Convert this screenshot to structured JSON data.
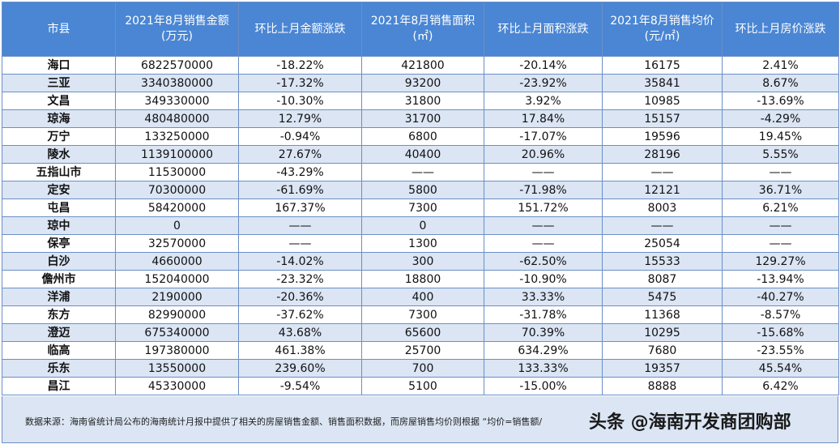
{
  "table": {
    "headers": [
      "市县",
      "2021年8月销售金额\n(万元)",
      "环比上月金额涨跌",
      "2021年8月销售面积\n(㎡)",
      "环比上月面积涨跌",
      "2021年8月销售均价\n(元/㎡)",
      "环比上月房价涨跌"
    ],
    "rows": [
      [
        "海口",
        "6822570000",
        "-18.22%",
        "421800",
        "-20.14%",
        "16175",
        "2.41%"
      ],
      [
        "三亚",
        "3340380000",
        "-17.32%",
        "93200",
        "-23.92%",
        "35841",
        "8.67%"
      ],
      [
        "文昌",
        "349330000",
        "-10.30%",
        "31800",
        "3.92%",
        "10985",
        "-13.69%"
      ],
      [
        "琼海",
        "480480000",
        "12.79%",
        "31700",
        "17.84%",
        "15157",
        "-4.29%"
      ],
      [
        "万宁",
        "133250000",
        "-0.94%",
        "6800",
        "-17.07%",
        "19596",
        "19.45%"
      ],
      [
        "陵水",
        "1139100000",
        "27.67%",
        "40400",
        "20.96%",
        "28196",
        "5.55%"
      ],
      [
        "五指山市",
        "11530000",
        "-43.29%",
        "——",
        "——",
        "——",
        "——"
      ],
      [
        "定安",
        "70300000",
        "-61.69%",
        "5800",
        "-71.98%",
        "12121",
        "36.71%"
      ],
      [
        "屯昌",
        "58420000",
        "167.37%",
        "7300",
        "151.72%",
        "8003",
        "6.21%"
      ],
      [
        "琼中",
        "0",
        "——",
        "0",
        "——",
        "——",
        "——"
      ],
      [
        "保亭",
        "32570000",
        "——",
        "1300",
        "——",
        "25054",
        "——"
      ],
      [
        "白沙",
        "4660000",
        "-14.02%",
        "300",
        "-62.50%",
        "15533",
        "129.27%"
      ],
      [
        "儋州市",
        "152040000",
        "-23.32%",
        "18800",
        "-10.90%",
        "8087",
        "-13.94%"
      ],
      [
        "洋浦",
        "2190000",
        "-20.36%",
        "400",
        "33.33%",
        "5475",
        "-40.27%"
      ],
      [
        "东方",
        "82990000",
        "-37.62%",
        "7300",
        "-31.78%",
        "11368",
        "-8.57%"
      ],
      [
        "澄迈",
        "675340000",
        "43.68%",
        "65600",
        "70.39%",
        "10295",
        "-15.68%"
      ],
      [
        "临高",
        "197380000",
        "461.38%",
        "25700",
        "634.29%",
        "7680",
        "-23.55%"
      ],
      [
        "乐东",
        "13550000",
        "239.60%",
        "700",
        "133.33%",
        "19357",
        "45.54%"
      ],
      [
        "昌江",
        "45330000",
        "-9.54%",
        "5100",
        "-15.00%",
        "8888",
        "6.42%"
      ]
    ]
  },
  "footer": {
    "note": "数据来源：海南省统计局公布的海南统计月报中提供了相关的房屋销售金额、销售面积数据，而房屋销售均价则根据 “均价=销售额/",
    "watermark": "头条 @海南开发商团购部"
  },
  "colors": {
    "header_bg": "#4a86d4",
    "row_alt_bg": "#dbe5f4",
    "increase": "#e8202a",
    "decrease": "#38a843"
  }
}
